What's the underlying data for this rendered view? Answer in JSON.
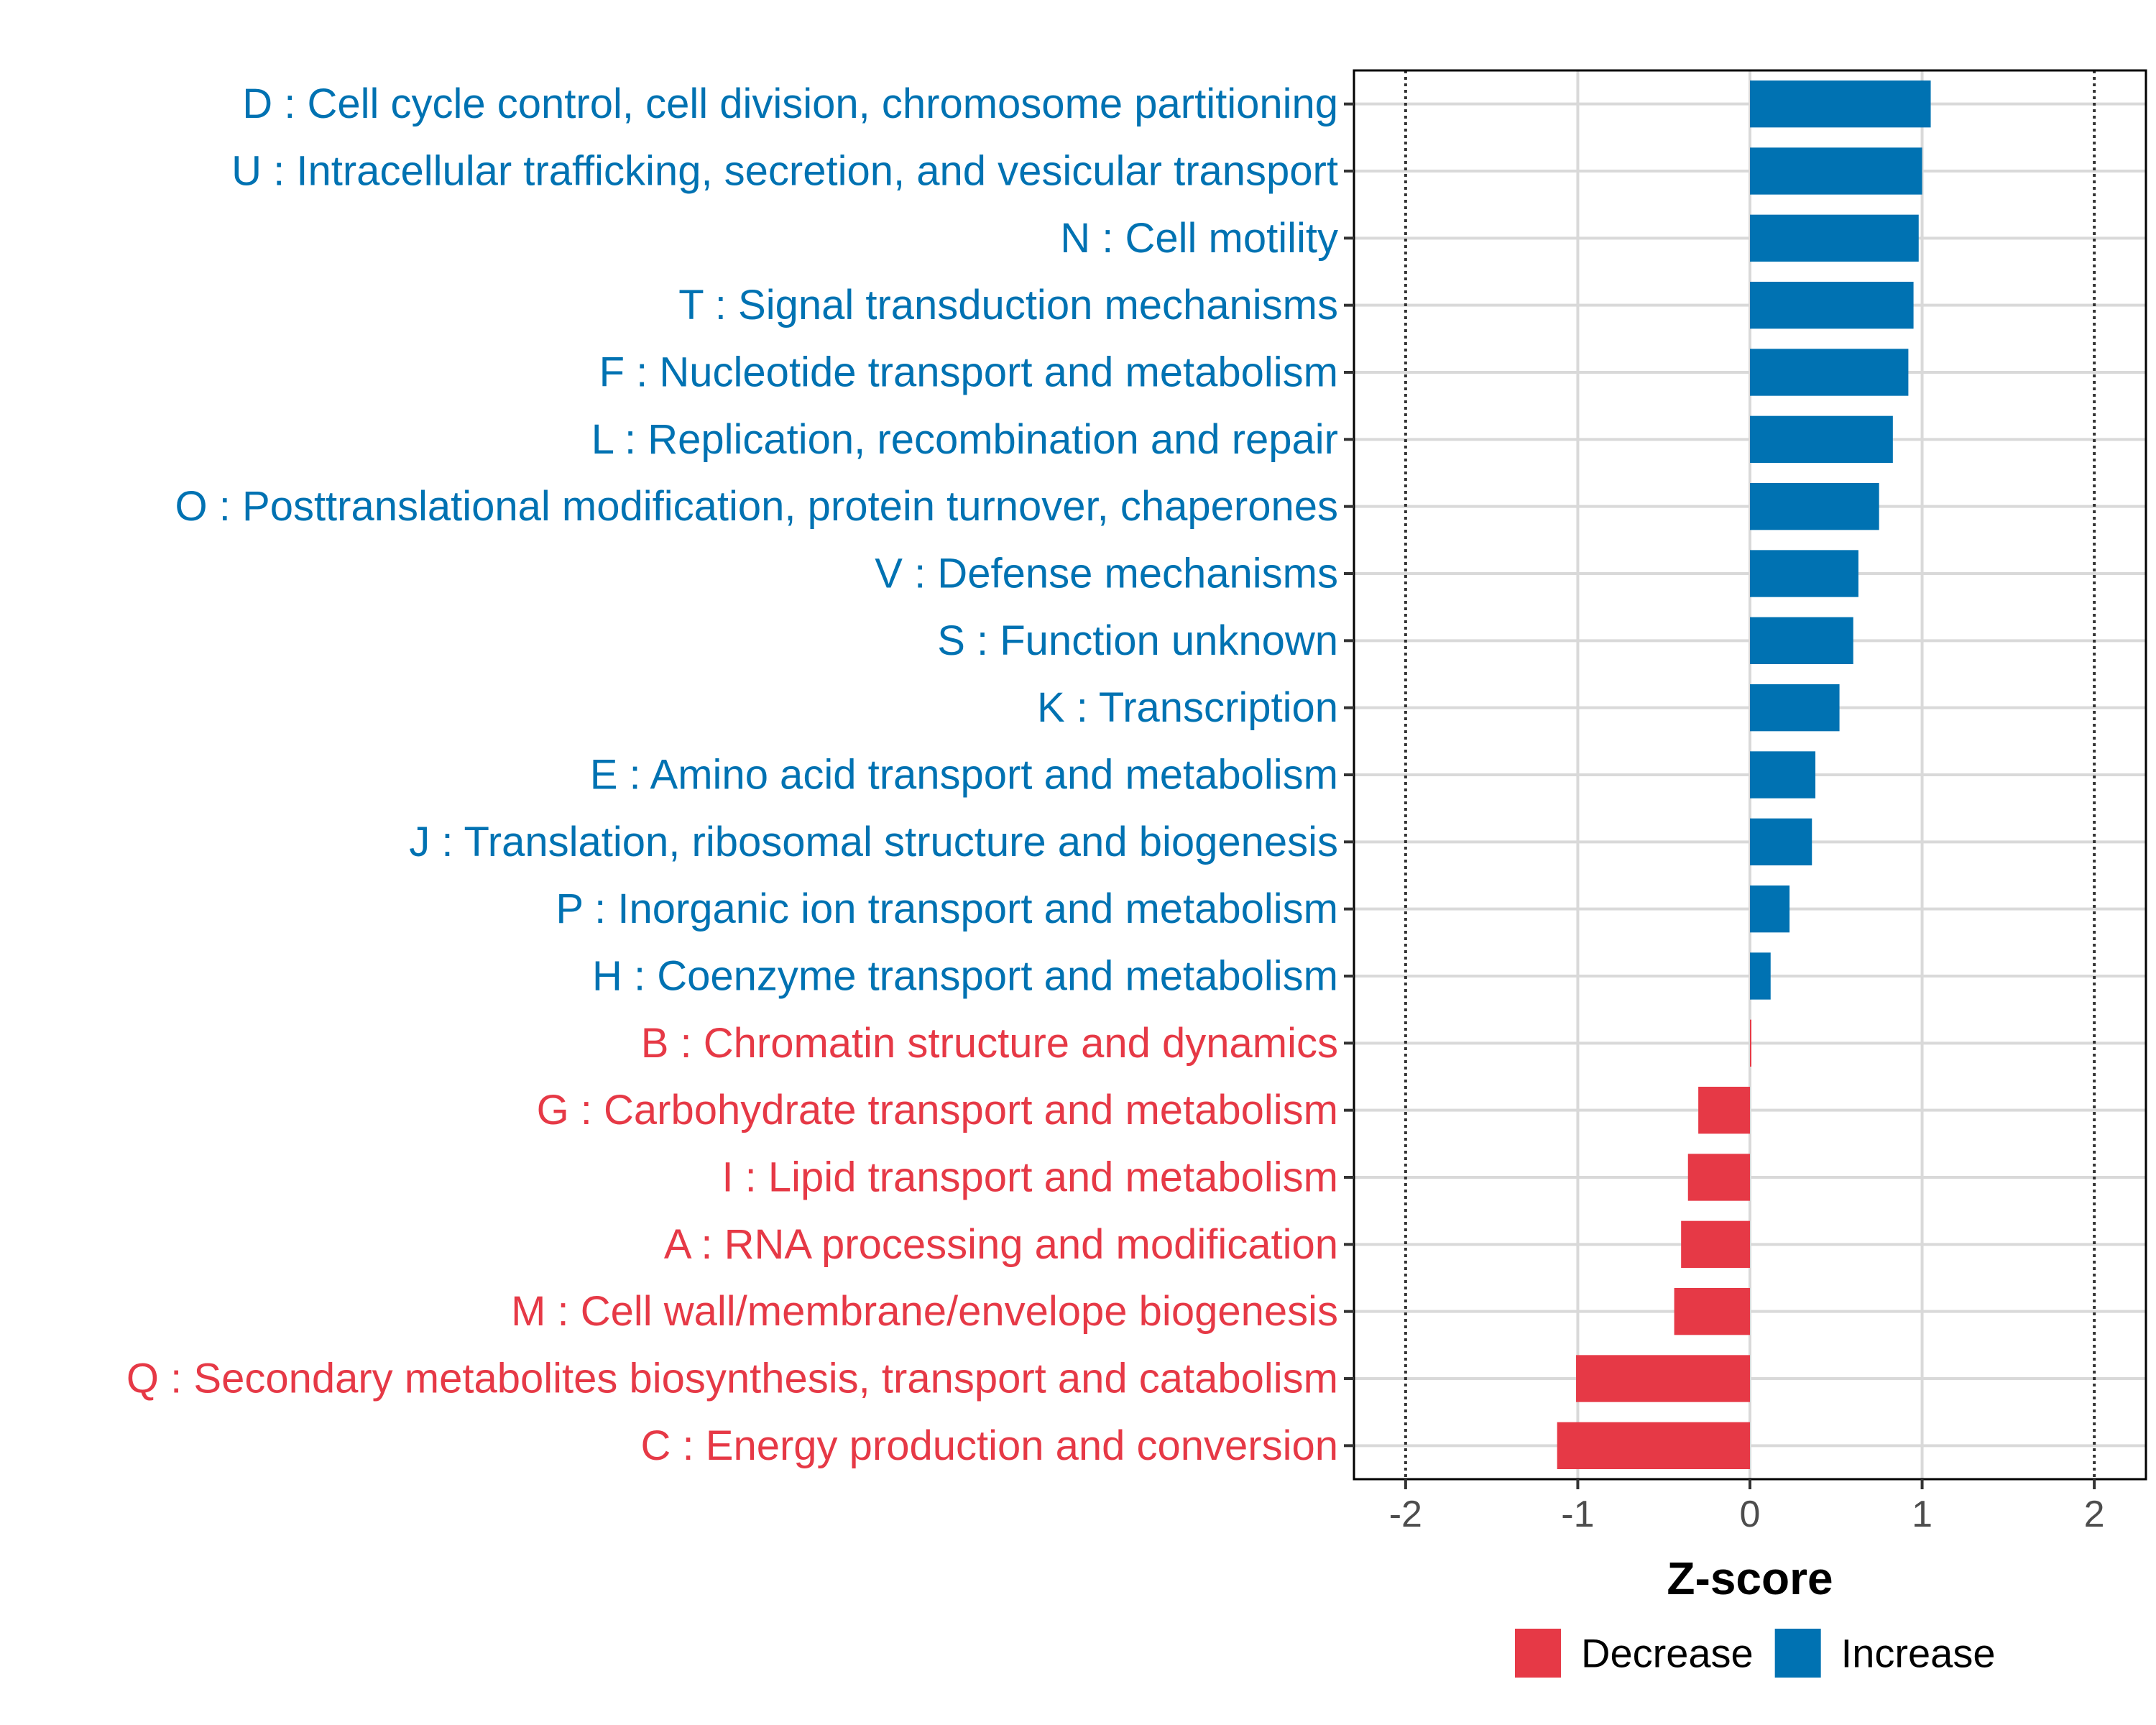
{
  "chart_data": {
    "type": "bar",
    "orientation": "horizontal",
    "title": "",
    "xlabel": "Z-score",
    "ylabel": "",
    "xlim": [
      -2.3,
      2.3
    ],
    "x_ticks": [
      -2,
      -1,
      0,
      1,
      2
    ],
    "x_tick_labels": [
      "-2",
      "-1",
      "0",
      "1",
      "2"
    ],
    "reference_lines": [
      -2,
      2
    ],
    "grid": true,
    "legend_position": "bottom",
    "colors": {
      "Increase": "#0072B2",
      "Decrease": "#E63946"
    },
    "legend": [
      {
        "name": "Decrease",
        "color": "#E63946"
      },
      {
        "name": "Increase",
        "color": "#0072B2"
      }
    ],
    "categories": [
      {
        "label": "D : Cell cycle control, cell division, chromosome partitioning",
        "value": 1.05,
        "group": "Increase"
      },
      {
        "label": "U : Intracellular trafficking, secretion, and vesicular transport",
        "value": 1.0,
        "group": "Increase"
      },
      {
        "label": "N : Cell motility",
        "value": 0.98,
        "group": "Increase"
      },
      {
        "label": "T : Signal transduction mechanisms",
        "value": 0.95,
        "group": "Increase"
      },
      {
        "label": "F : Nucleotide transport and metabolism",
        "value": 0.92,
        "group": "Increase"
      },
      {
        "label": "L : Replication, recombination and repair",
        "value": 0.83,
        "group": "Increase"
      },
      {
        "label": "O : Posttranslational modification, protein turnover, chaperones",
        "value": 0.75,
        "group": "Increase"
      },
      {
        "label": "V : Defense mechanisms",
        "value": 0.63,
        "group": "Increase"
      },
      {
        "label": "S : Function unknown",
        "value": 0.6,
        "group": "Increase"
      },
      {
        "label": "K : Transcription",
        "value": 0.52,
        "group": "Increase"
      },
      {
        "label": "E : Amino acid transport and metabolism",
        "value": 0.38,
        "group": "Increase"
      },
      {
        "label": "J : Translation, ribosomal structure and biogenesis",
        "value": 0.36,
        "group": "Increase"
      },
      {
        "label": "P : Inorganic ion transport and metabolism",
        "value": 0.23,
        "group": "Increase"
      },
      {
        "label": "H : Coenzyme transport and metabolism",
        "value": 0.12,
        "group": "Increase"
      },
      {
        "label": "B : Chromatin structure and dynamics",
        "value": 0.0,
        "group": "Decrease"
      },
      {
        "label": "G : Carbohydrate transport and metabolism",
        "value": -0.3,
        "group": "Decrease"
      },
      {
        "label": "I : Lipid transport and metabolism",
        "value": -0.36,
        "group": "Decrease"
      },
      {
        "label": "A : RNA processing and modification",
        "value": -0.4,
        "group": "Decrease"
      },
      {
        "label": "M : Cell wall/membrane/envelope biogenesis",
        "value": -0.44,
        "group": "Decrease"
      },
      {
        "label": "Q : Secondary metabolites biosynthesis, transport and catabolism",
        "value": -1.01,
        "group": "Decrease"
      },
      {
        "label": "C : Energy production and conversion",
        "value": -1.12,
        "group": "Decrease"
      }
    ]
  }
}
